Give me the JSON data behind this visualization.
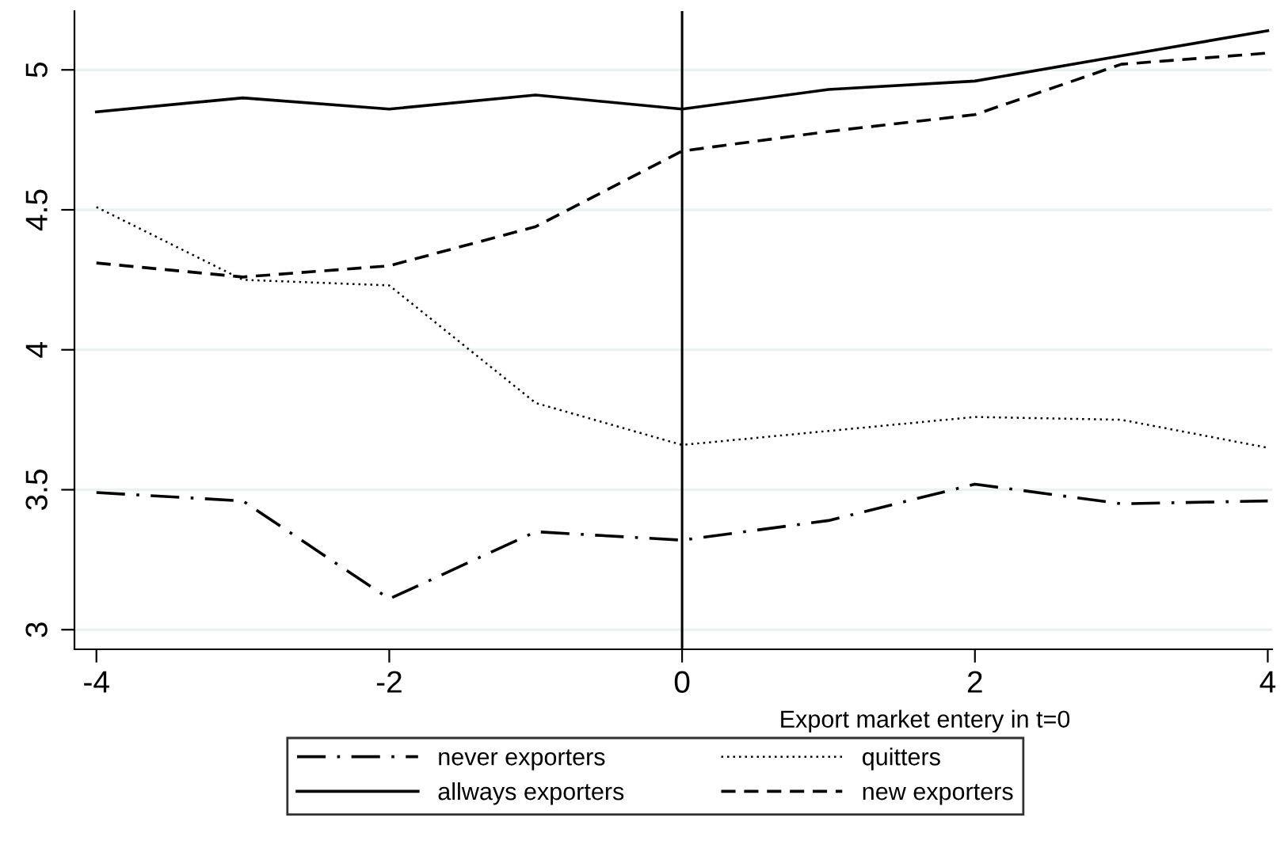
{
  "chart_data": {
    "type": "line",
    "xlabel": "Export market entery in t=0",
    "x": [
      -4,
      -3,
      -2,
      -1,
      0,
      1,
      2,
      3,
      4
    ],
    "series": [
      {
        "name": "never exporters",
        "color": "#000000",
        "line_style": "dashdot",
        "values": [
          3.49,
          3.46,
          3.11,
          3.35,
          3.32,
          3.39,
          3.52,
          3.45,
          3.46
        ]
      },
      {
        "name": "allways exporters",
        "color": "#000000",
        "line_style": "solid",
        "values": [
          4.85,
          4.9,
          4.86,
          4.91,
          4.86,
          4.93,
          4.96,
          5.05,
          5.14
        ]
      },
      {
        "name": "quitters",
        "color": "#000000",
        "line_style": "dotted",
        "values": [
          4.51,
          4.25,
          4.23,
          3.81,
          3.66,
          3.71,
          3.76,
          3.75,
          3.65
        ]
      },
      {
        "name": "new exporters",
        "color": "#000000",
        "line_style": "dashed",
        "values": [
          4.31,
          4.26,
          4.3,
          4.44,
          4.71,
          4.78,
          4.84,
          5.02,
          5.06
        ]
      }
    ],
    "xlim": [
      -4.15,
      4.03
    ],
    "xticks": [
      -4,
      -2,
      0,
      2,
      4
    ],
    "ylim": [
      2.93,
      5.21
    ],
    "yticks": [
      3,
      3.5,
      4,
      4.5,
      5
    ],
    "ref_lines": [
      {
        "axis": "x",
        "value": 0,
        "color": "#000000"
      }
    ],
    "grid": "y",
    "legend": "bottom",
    "marker": "none"
  }
}
